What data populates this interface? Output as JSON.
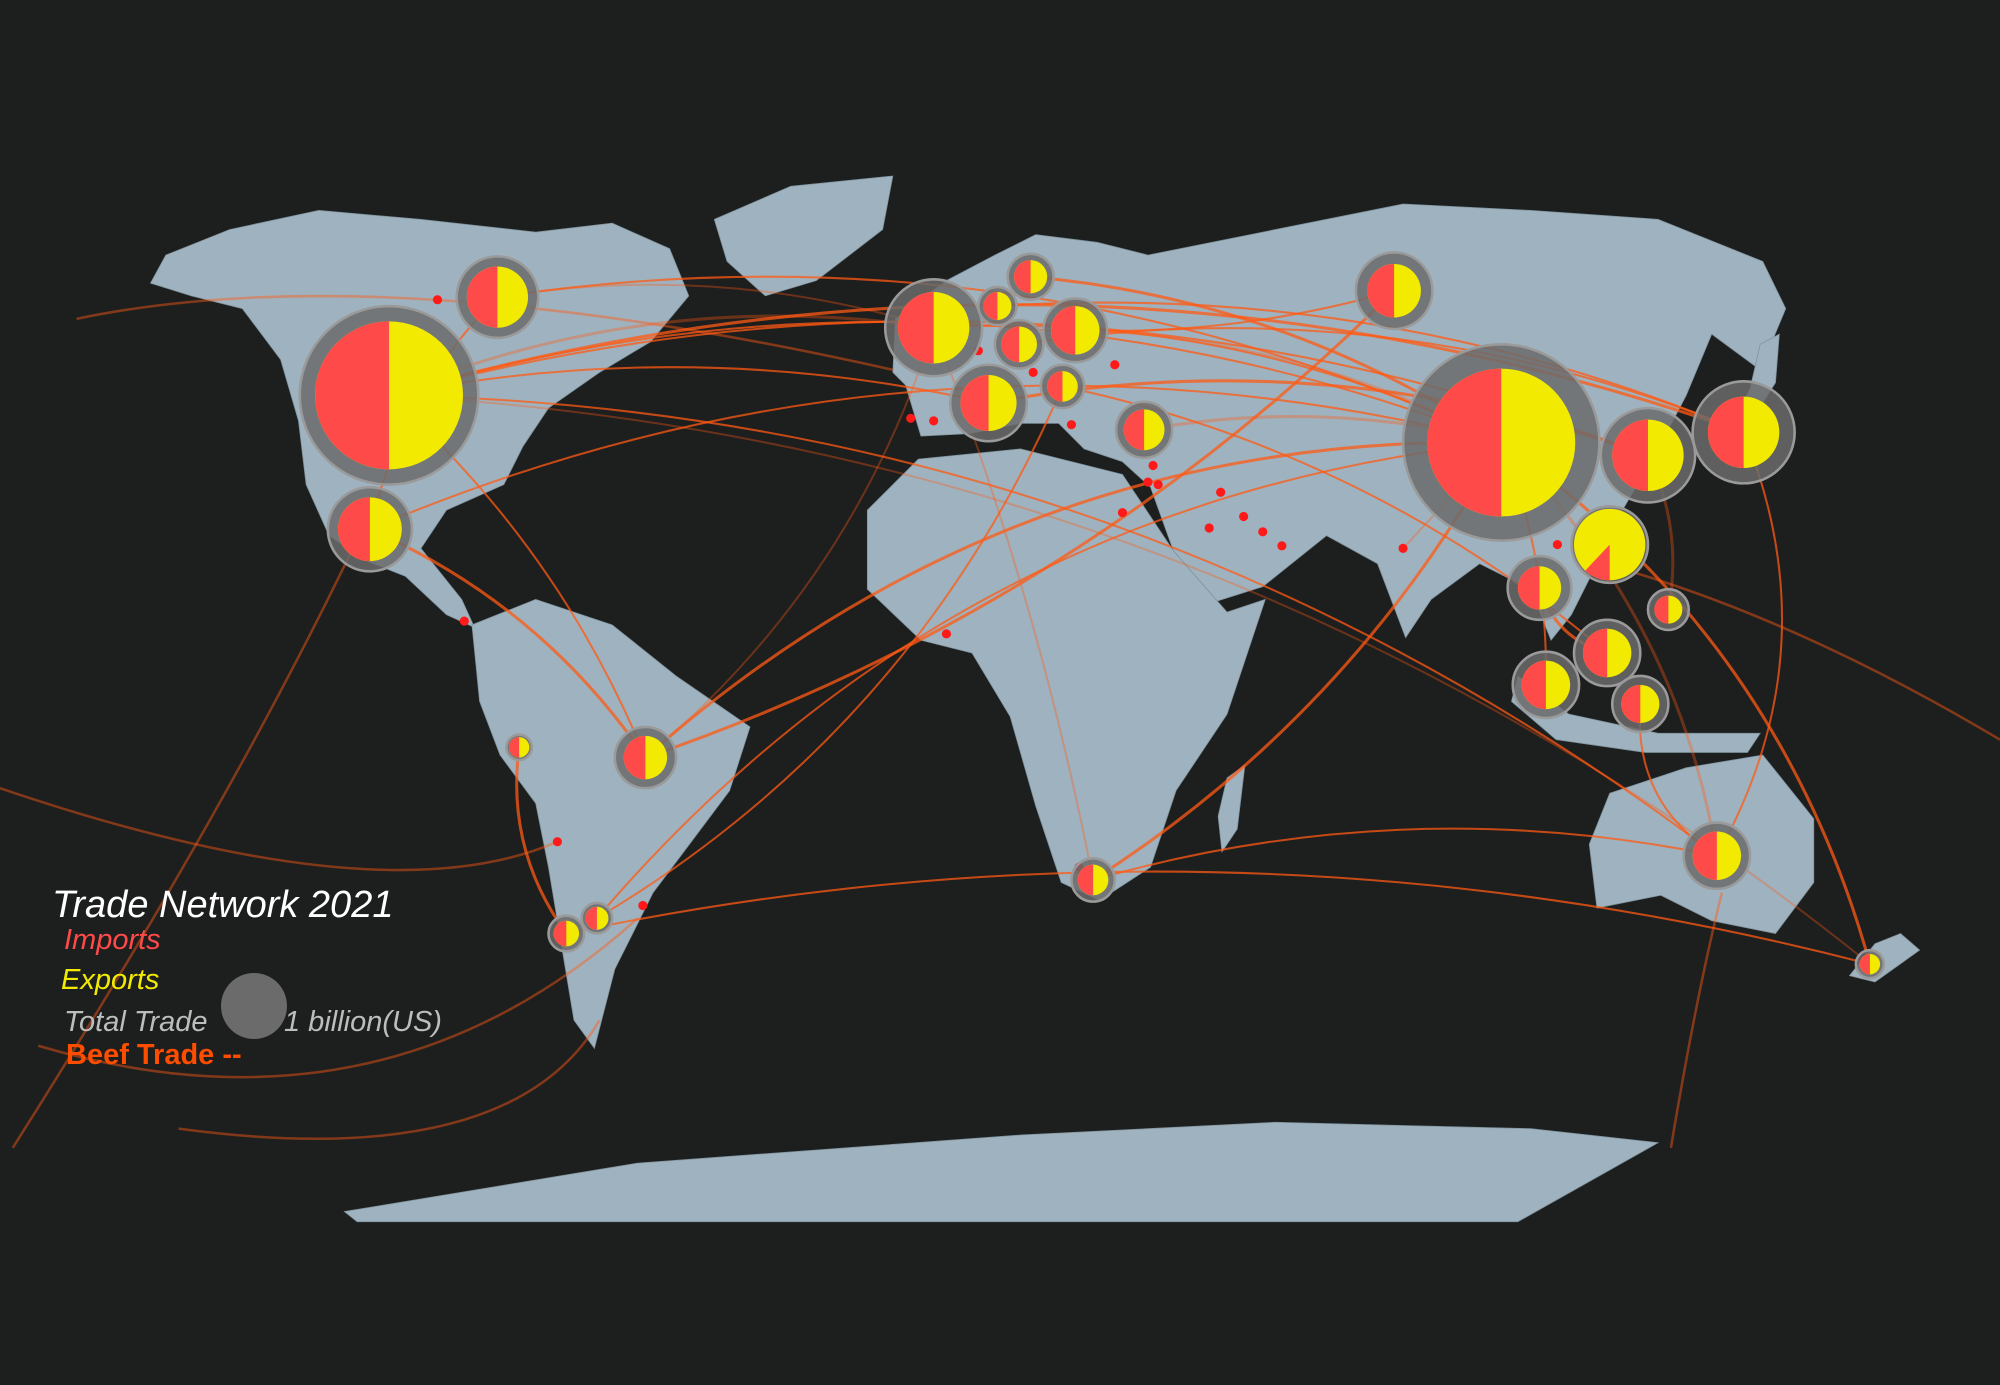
{
  "legend": {
    "title": "Trade Network 2021",
    "imports_label": "Imports",
    "exports_label": "Exports",
    "total_trade_label": "Total Trade",
    "scale_label": "1 billion(US)",
    "beef_trade_label": "Beef Trade --"
  },
  "colors": {
    "background": "#1d1e1e",
    "land": "#9eb3bf",
    "imports": "#ff4a4a",
    "exports": "#f2ea00",
    "total_trade": "#6b6b6b",
    "trade_route": "#ff5a14",
    "port_dot": "#ff1a1a"
  }
}
